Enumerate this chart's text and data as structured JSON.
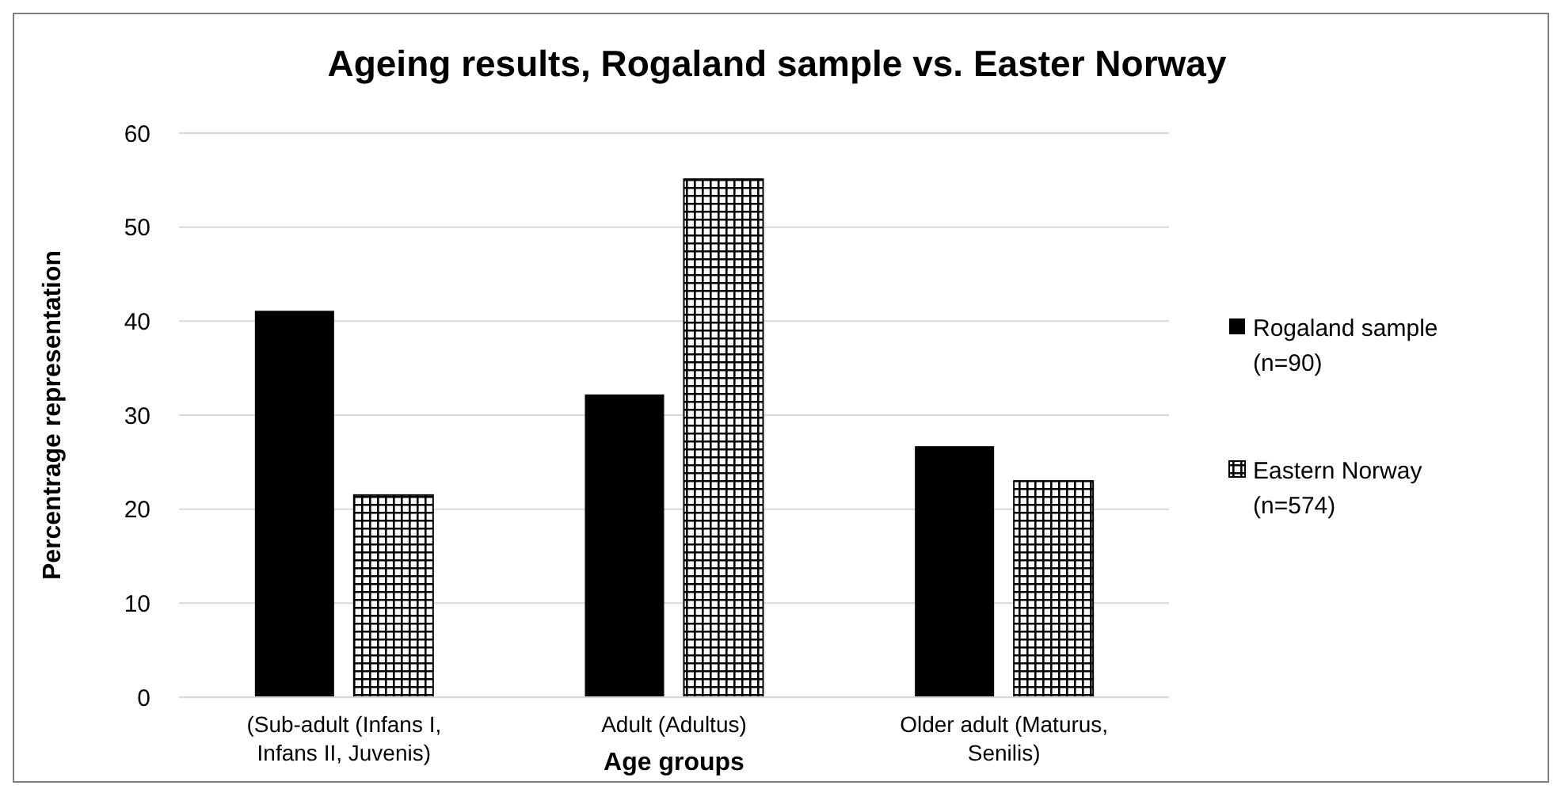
{
  "chart_data": {
    "type": "bar",
    "title": "Ageing results, Rogaland sample vs. Easter Norway",
    "xlabel": "Age groups",
    "ylabel": "Percentrage representation",
    "categories": [
      "(Sub-adult (Infans I, Infans II, Juvenis)",
      "Adult (Adultus)",
      "Older adult (Maturus, Senilis)"
    ],
    "series": [
      {
        "name": "Rogaland sample (n=90)",
        "color": "#000000",
        "values": [
          41.1,
          32.2,
          26.7
        ]
      },
      {
        "name": "Eastern Norway (n=574)",
        "color": "#000000",
        "values": [
          21.5,
          55.1,
          23.0
        ]
      }
    ],
    "ylim": [
      0,
      60
    ],
    "yticks": [
      0,
      10,
      20,
      30,
      40,
      50,
      60
    ],
    "grid": "y",
    "legend": "right"
  }
}
